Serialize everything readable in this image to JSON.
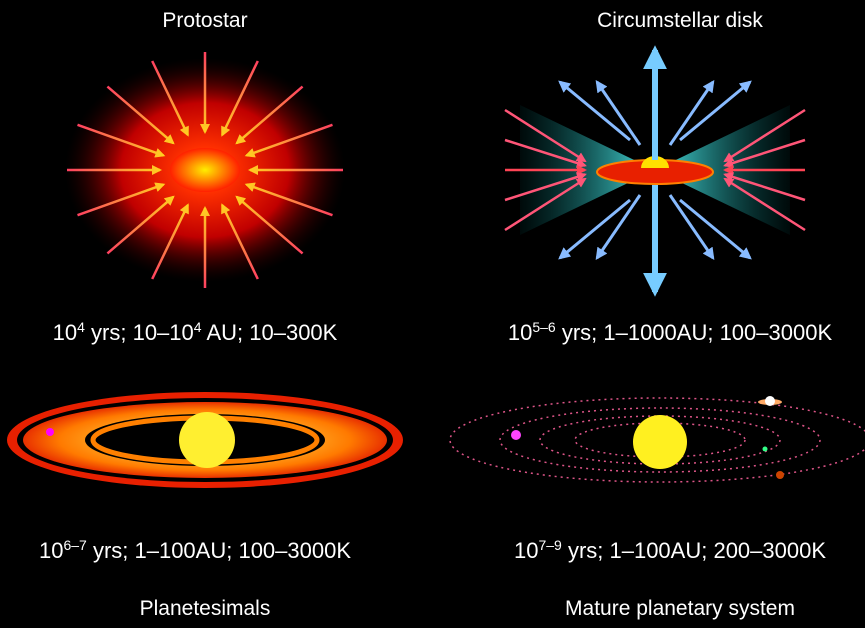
{
  "panels": [
    {
      "title": "Protostar",
      "caption": [
        {
          "text": "10"
        },
        {
          "sup": "4"
        },
        {
          "text": " yrs; 10–10"
        },
        {
          "sup": "4"
        },
        {
          "text": " AU; 10–300K"
        }
      ]
    },
    {
      "title": "Circumstellar disk",
      "caption": [
        {
          "text": "10"
        },
        {
          "sup": "5–6"
        },
        {
          "text": " yrs; 1–1000AU; 100–3000K"
        }
      ]
    },
    {
      "title": "Planetesimals",
      "caption": [
        {
          "text": "10"
        },
        {
          "sup": "6–7"
        },
        {
          "text": " yrs; 1–100AU; 100–3000K"
        }
      ]
    },
    {
      "title": "Mature planetary system",
      "caption": [
        {
          "text": "10"
        },
        {
          "sup": "7–9"
        },
        {
          "text": " yrs; 1–100AU; 200–3000K"
        }
      ]
    }
  ]
}
